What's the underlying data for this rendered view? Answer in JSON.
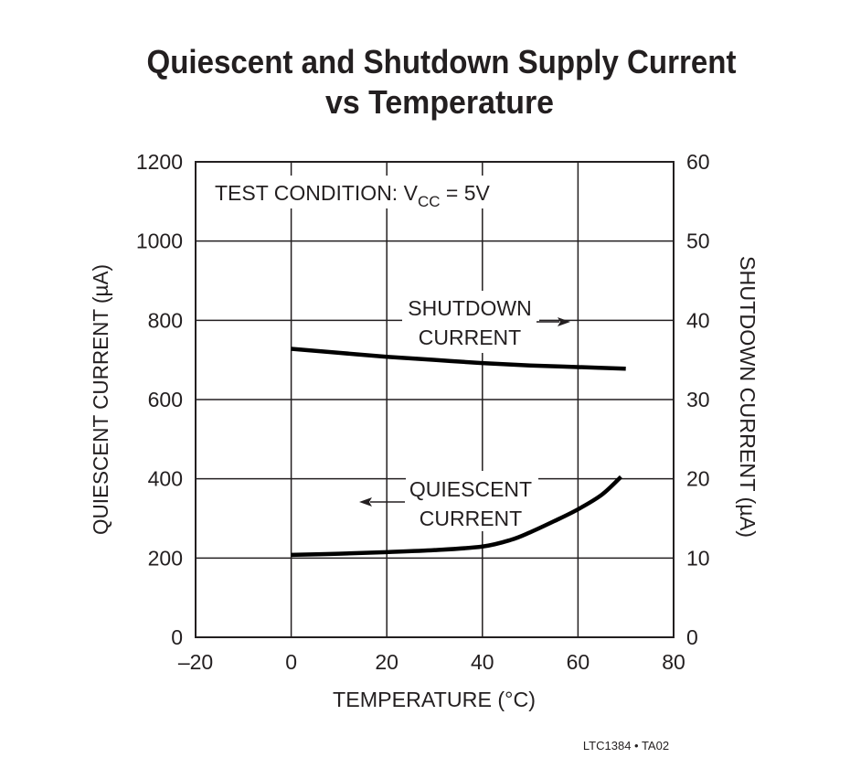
{
  "chart_data": {
    "type": "line",
    "title": [
      "Quiescent and Shutdown Supply Current",
      "vs Temperature"
    ],
    "xlabel": "TEMPERATURE (°C)",
    "ylabel_left": "QUIESCENT CURRENT (µA)",
    "ylabel_right": "SHUTDOWN CURRENT (µA)",
    "xlim": [
      -20,
      80
    ],
    "ylim_left": [
      0,
      1200
    ],
    "ylim_right": [
      0,
      60
    ],
    "x_ticks": [
      "–20",
      "0",
      "20",
      "40",
      "60",
      "80"
    ],
    "x_tick_values": [
      -20,
      0,
      20,
      40,
      60,
      80
    ],
    "y_left_ticks": [
      "0",
      "200",
      "400",
      "600",
      "800",
      "1000",
      "1200"
    ],
    "y_right_ticks": [
      "0",
      "10",
      "20",
      "30",
      "40",
      "50",
      "60"
    ],
    "grid": true,
    "annotation": {
      "prefix": "TEST CONDITION: V",
      "sub": "CC",
      "suffix": " = 5V"
    },
    "series": [
      {
        "name": [
          "SHUTDOWN",
          "CURRENT"
        ],
        "axis": "right",
        "x": [
          0,
          10,
          20,
          30,
          40,
          50,
          60,
          70
        ],
        "y": [
          36.4,
          35.9,
          35.4,
          35.0,
          34.6,
          34.3,
          34.1,
          33.9
        ]
      },
      {
        "name": [
          "QUIESCENT",
          "CURRENT"
        ],
        "axis": "left",
        "x": [
          0,
          10,
          20,
          30,
          40,
          46,
          50,
          55,
          60,
          65,
          69
        ],
        "y": [
          208,
          211,
          215,
          220,
          229,
          246,
          265,
          293,
          323,
          360,
          405
        ]
      }
    ],
    "footer": "LTC1384 • TA02"
  }
}
